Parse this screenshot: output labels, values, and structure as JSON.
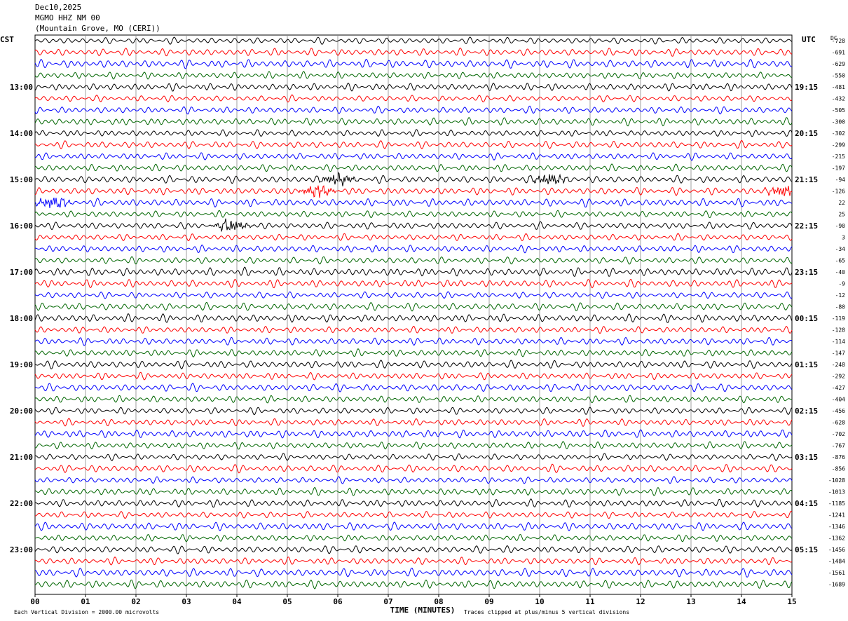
{
  "header": {
    "date": "Dec10,2025",
    "station": "MGMO HHZ NM 00",
    "location": "(Mountain Grove, MO (CERI))"
  },
  "chart_data": {
    "type": "helicorder",
    "xlabel": "TIME (MINUTES)",
    "x_ticks": [
      "00",
      "01",
      "02",
      "03",
      "04",
      "05",
      "06",
      "07",
      "08",
      "09",
      "10",
      "11",
      "12",
      "13",
      "14",
      "15"
    ],
    "xlim": [
      0,
      15
    ],
    "left_axis_label": "CST",
    "right_axis_label": "UTC",
    "dc_label": "DC",
    "cst_labels": [
      "13:00",
      "14:00",
      "15:00",
      "16:00",
      "17:00",
      "18:00",
      "19:00",
      "20:00",
      "21:00",
      "22:00",
      "23:00"
    ],
    "utc_labels": [
      "19:15",
      "20:15",
      "21:15",
      "22:15",
      "23:15",
      "00:15",
      "01:15",
      "02:15",
      "03:15",
      "04:15",
      "05:15"
    ],
    "label_start_row": 4,
    "rows_per_hour": 4,
    "trace_colors": [
      "#000000",
      "#ff0000",
      "#0000ff",
      "#006600"
    ],
    "dc_offsets": [
      -728,
      -691,
      -629,
      -550,
      -481,
      -432,
      -505,
      -300,
      -302,
      -299,
      -215,
      -197,
      -94,
      -126,
      22,
      25,
      -90,
      3,
      -34,
      -65,
      -40,
      -9,
      -12,
      -80,
      -119,
      -128,
      -114,
      -147,
      -248,
      -292,
      -427,
      -404,
      -456,
      -628,
      -702,
      -767,
      -876,
      -856,
      -1028,
      -1013,
      -1185,
      -1241,
      -1346,
      -1362,
      -1456,
      -1484,
      -1561,
      -1689
    ],
    "footer_left": "Each Vertical Division = 2000.00 microvolts",
    "footer_right": "Traces clipped at plus/minus 5 vertical divisions",
    "events": [
      {
        "row": 12,
        "minute": 6.0
      },
      {
        "row": 12,
        "minute": 10.2
      },
      {
        "row": 13,
        "minute": 5.6
      },
      {
        "row": 13,
        "minute": 14.85
      },
      {
        "row": 14,
        "minute": 0.35
      },
      {
        "row": 16,
        "minute": 3.9
      }
    ]
  }
}
